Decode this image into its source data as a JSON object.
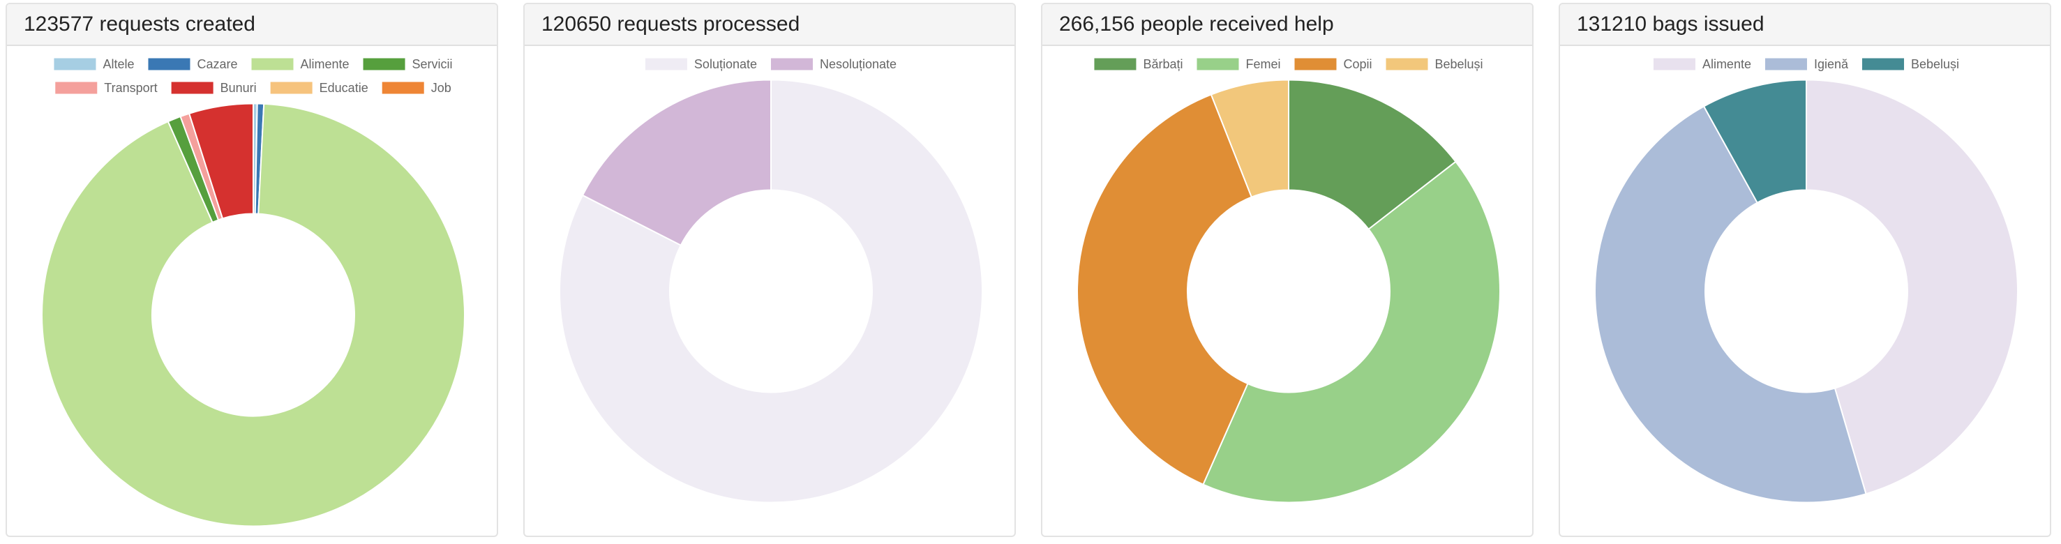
{
  "colors": {
    "border": "#e3e3e3",
    "header_bg": "#f5f5f5",
    "legend_text": "#666666",
    "slice_stroke": "#ffffff"
  },
  "chart_data": [
    {
      "type": "pie",
      "variant": "doughnut",
      "title": "123577 requests created",
      "legend_position": "top",
      "categories": [
        "Altele",
        "Cazare",
        "Alimente",
        "Servicii",
        "Transport",
        "Bunuri",
        "Educatie",
        "Job"
      ],
      "values": [
        371,
        618,
        114431,
        1236,
        865,
        6056,
        0,
        0
      ],
      "colors": [
        "#a6cee3",
        "#3a78b4",
        "#bde094",
        "#569f3d",
        "#f4a09c",
        "#d5312f",
        "#f6c37d",
        "#ee8535"
      ]
    },
    {
      "type": "pie",
      "variant": "doughnut",
      "title": "120650 requests processed",
      "legend_position": "top",
      "categories": [
        "Soluționate",
        "Nesoluționate"
      ],
      "values": [
        99537,
        21113
      ],
      "colors": [
        "#efecf4",
        "#d2b7d7"
      ]
    },
    {
      "type": "pie",
      "variant": "doughnut",
      "title": "266,156 people received help",
      "legend_position": "top",
      "categories": [
        "Bărbați",
        "Femei",
        "Copii",
        "Bebeluși"
      ],
      "values": [
        38593,
        112118,
        99543,
        15902
      ],
      "colors": [
        "#649e58",
        "#98d089",
        "#e08e35",
        "#f2c77b"
      ]
    },
    {
      "type": "pie",
      "variant": "doughnut",
      "title": "131210 bags issued",
      "legend_position": "top",
      "categories": [
        "Alimente",
        "Igienă",
        "Bebeluși"
      ],
      "values": [
        59632,
        61009,
        10569
      ],
      "colors": [
        "#e8e1ee",
        "#abbcd8",
        "#448b94"
      ]
    }
  ]
}
